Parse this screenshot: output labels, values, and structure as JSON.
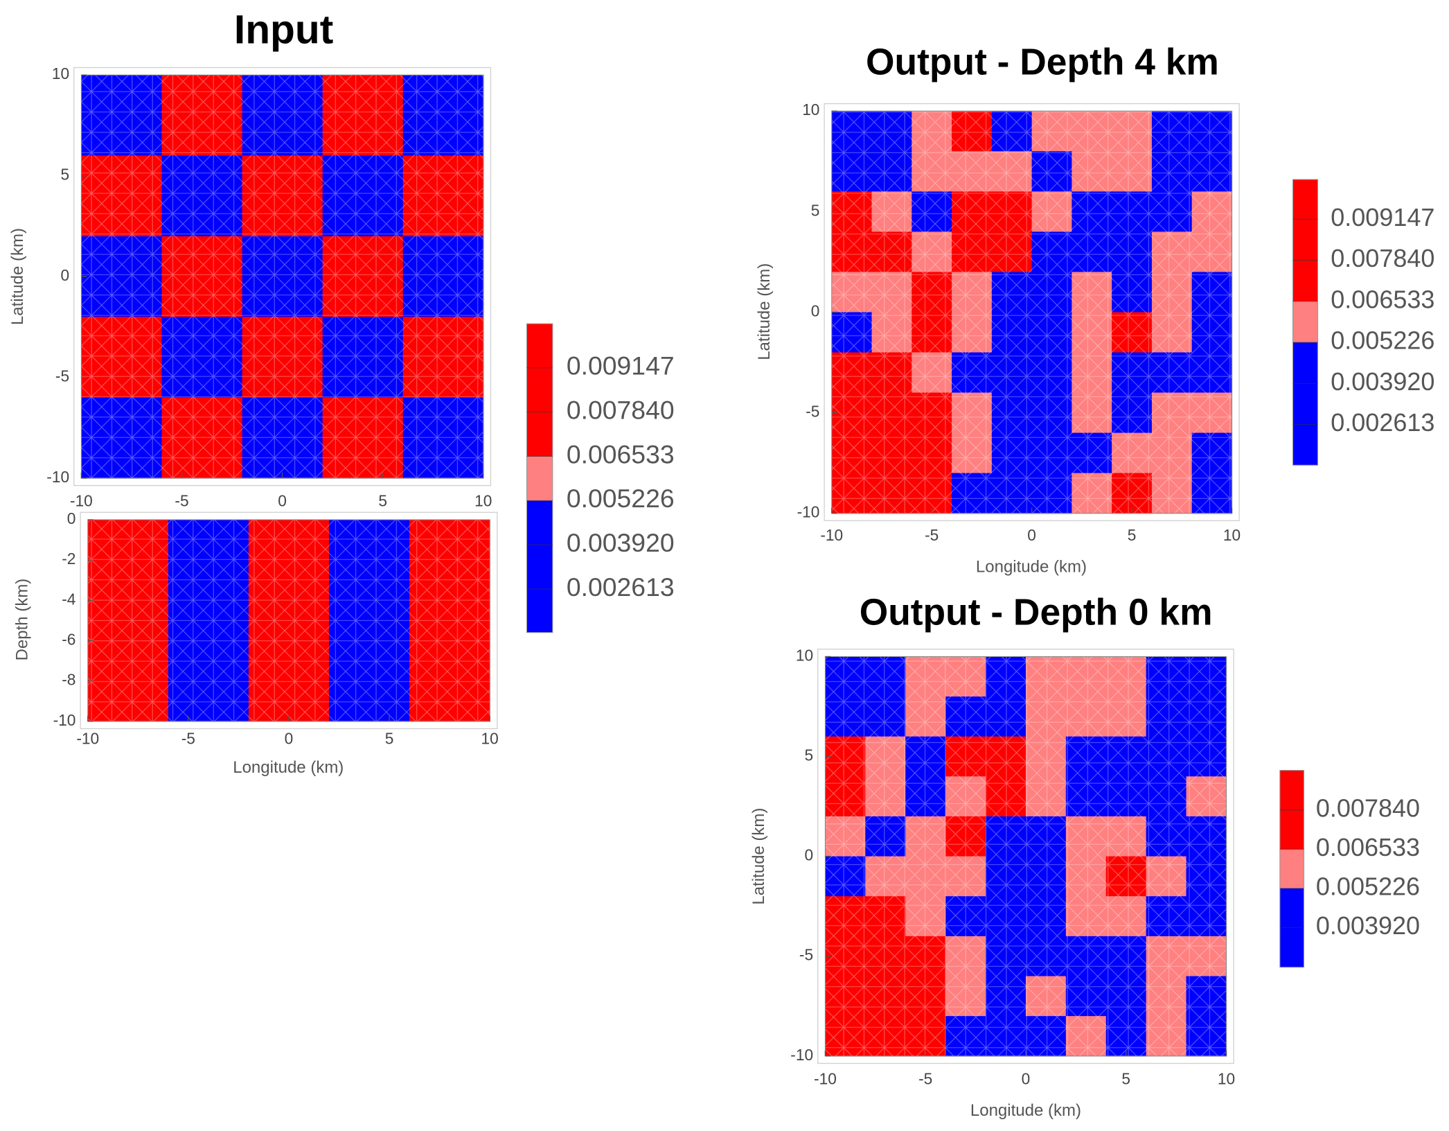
{
  "chart_data": [
    {
      "type": "contour",
      "title": "Input",
      "ylabel": "Latitude (km)",
      "xlim": [
        -10,
        10
      ],
      "ylim": [
        -10,
        10
      ],
      "xticks": [
        -10,
        -5,
        0,
        5,
        10
      ],
      "yticks": [
        -10,
        -5,
        0,
        5,
        10
      ],
      "levels": [
        0.005226,
        0.006533
      ],
      "colors": [
        "#0000ff",
        "#ff8080",
        "#ff0000"
      ],
      "z": [
        [
          0.0039,
          0.0078,
          0.0039,
          0.0078,
          0.0039
        ],
        [
          0.0078,
          0.0039,
          0.0078,
          0.0039,
          0.0078
        ],
        [
          0.0039,
          0.0078,
          0.0039,
          0.0078,
          0.0039
        ],
        [
          0.0078,
          0.0039,
          0.0078,
          0.0039,
          0.0078
        ],
        [
          0.0039,
          0.0078,
          0.0039,
          0.0078,
          0.0039
        ]
      ],
      "colorbar": {
        "lim": [
          0.00133,
          0.01045
        ],
        "ticks": [
          0.009147,
          {
            "value": 0.00784,
            "label": "0.007840"
          },
          0.006533,
          0.005226,
          {
            "value": 0.00392,
            "label": "0.003920"
          },
          0.002613
        ]
      }
    },
    {
      "type": "contour",
      "xlabel": "Longitude (km)",
      "ylabel": "Depth (km)",
      "xlim": [
        -10,
        10
      ],
      "ylim": [
        -10,
        0
      ],
      "xticks": [
        -10,
        -5,
        0,
        5,
        10
      ],
      "yticks": [
        0,
        -2,
        -4,
        -6,
        -8,
        -10
      ],
      "levels": [
        0.005226,
        0.006533
      ],
      "colors": [
        "#0000ff",
        "#ff8080",
        "#ff0000"
      ],
      "z": [
        [
          0.0078,
          0.0039,
          0.0078,
          0.0039,
          0.0078
        ]
      ]
    },
    {
      "type": "contour",
      "title": "Output - Depth 4 km",
      "xlabel": "Longitude (km)",
      "ylabel": "Latitude (km)",
      "xlim": [
        -10,
        10
      ],
      "ylim": [
        -10,
        10
      ],
      "xticks": [
        -10,
        -5,
        0,
        5,
        10
      ],
      "yticks": [
        -10,
        -5,
        0,
        5,
        10
      ],
      "levels": [
        0.005226,
        0.006533
      ],
      "colors": [
        "#0000ff",
        "#ff8080",
        "#ff0000"
      ],
      "z": [
        [
          0.0039,
          0.0039,
          0.0059,
          0.0072,
          0.0039,
          0.0059,
          0.0059,
          0.0059,
          0.0039,
          0.0039
        ],
        [
          0.0039,
          0.0039,
          0.0059,
          0.0059,
          0.0059,
          0.0039,
          0.0059,
          0.0059,
          0.0039,
          0.0039
        ],
        [
          0.0072,
          0.0059,
          0.0039,
          0.0072,
          0.0072,
          0.0059,
          0.0039,
          0.0039,
          0.0039,
          0.0059
        ],
        [
          0.0072,
          0.0072,
          0.0059,
          0.0072,
          0.0072,
          0.0039,
          0.0039,
          0.0039,
          0.0059,
          0.0059
        ],
        [
          0.0059,
          0.0059,
          0.0072,
          0.0059,
          0.0039,
          0.0039,
          0.0059,
          0.0039,
          0.0059,
          0.0039
        ],
        [
          0.0039,
          0.0059,
          0.0072,
          0.0059,
          0.0039,
          0.0039,
          0.0059,
          0.0072,
          0.0059,
          0.0039
        ],
        [
          0.0072,
          0.0072,
          0.0059,
          0.0039,
          0.0039,
          0.0039,
          0.0059,
          0.0039,
          0.0039,
          0.0039
        ],
        [
          0.0072,
          0.0072,
          0.0072,
          0.0059,
          0.0039,
          0.0039,
          0.0059,
          0.0039,
          0.0059,
          0.0059
        ],
        [
          0.0072,
          0.0072,
          0.0072,
          0.0059,
          0.0039,
          0.0039,
          0.0039,
          0.0059,
          0.0059,
          0.0039
        ],
        [
          0.0072,
          0.0072,
          0.0072,
          0.0039,
          0.0039,
          0.0039,
          0.0059,
          0.0072,
          0.0059,
          0.0039
        ]
      ],
      "colorbar": {
        "lim": [
          0.00132,
          0.01041
        ],
        "ticks": [
          0.009147,
          {
            "value": 0.00784,
            "label": "0.007840"
          },
          0.006533,
          0.005226,
          {
            "value": 0.00392,
            "label": "0.003920"
          },
          0.002613
        ]
      }
    },
    {
      "type": "contour",
      "title": "Output - Depth 0 km",
      "xlabel": "Longitude (km)",
      "ylabel": "Latitude (km)",
      "xlim": [
        -10,
        10
      ],
      "ylim": [
        -10,
        10
      ],
      "xticks": [
        -10,
        -5,
        0,
        5,
        10
      ],
      "yticks": [
        -10,
        -5,
        0,
        5,
        10
      ],
      "levels": [
        0.005226,
        0.006533
      ],
      "colors": [
        "#0000ff",
        "#ff8080",
        "#ff0000"
      ],
      "z": [
        [
          0.0039,
          0.0039,
          0.0059,
          0.0059,
          0.0039,
          0.0059,
          0.0059,
          0.0059,
          0.0039,
          0.0039
        ],
        [
          0.0039,
          0.0039,
          0.0059,
          0.0039,
          0.0039,
          0.0059,
          0.0059,
          0.0059,
          0.0039,
          0.0039
        ],
        [
          0.0072,
          0.0059,
          0.0039,
          0.0072,
          0.0072,
          0.0059,
          0.0039,
          0.0039,
          0.0039,
          0.0039
        ],
        [
          0.0072,
          0.0059,
          0.0039,
          0.0059,
          0.0072,
          0.0059,
          0.0039,
          0.0039,
          0.0039,
          0.0059
        ],
        [
          0.0059,
          0.0039,
          0.0059,
          0.0072,
          0.0039,
          0.0039,
          0.0059,
          0.0059,
          0.0039,
          0.0039
        ],
        [
          0.0039,
          0.0059,
          0.0059,
          0.0059,
          0.0039,
          0.0039,
          0.0059,
          0.0072,
          0.0059,
          0.0039
        ],
        [
          0.0072,
          0.0072,
          0.0059,
          0.0039,
          0.0039,
          0.0039,
          0.0059,
          0.0059,
          0.0039,
          0.0039
        ],
        [
          0.0072,
          0.0072,
          0.0072,
          0.0059,
          0.0039,
          0.0039,
          0.0039,
          0.0039,
          0.0059,
          0.0059
        ],
        [
          0.0072,
          0.0072,
          0.0072,
          0.0059,
          0.0039,
          0.0059,
          0.0039,
          0.0039,
          0.0059,
          0.0039
        ],
        [
          0.0072,
          0.0072,
          0.0072,
          0.0039,
          0.0039,
          0.0039,
          0.0059,
          0.0039,
          0.0059,
          0.0039
        ]
      ],
      "colorbar": {
        "lim": [
          0.00259,
          0.00917
        ],
        "ticks": [
          {
            "value": 0.00784,
            "label": "0.007840"
          },
          0.006533,
          0.005226,
          {
            "value": 0.00392,
            "label": "0.003920"
          }
        ]
      }
    }
  ]
}
